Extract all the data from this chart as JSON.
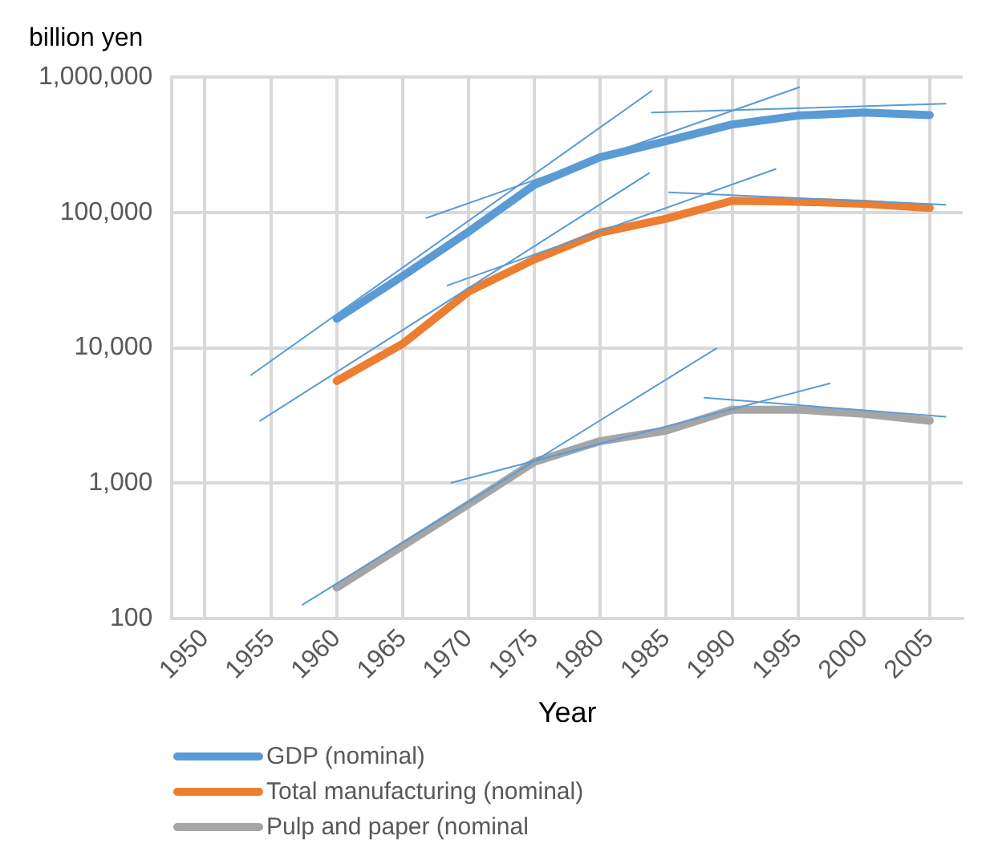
{
  "chart_data": {
    "type": "line",
    "xlabel": "Year",
    "ylabel": "billion yen",
    "log": "y",
    "grid": true,
    "legend": "bottom",
    "marker": "none",
    "line_style": "solid",
    "x": [
      1960,
      1965,
      1970,
      1975,
      1980,
      1985,
      1990,
      1995,
      2000,
      2005
    ],
    "xlim": [
      1947.5,
      2007.5
    ],
    "xticks": [
      1950,
      1955,
      1960,
      1965,
      1970,
      1975,
      1980,
      1985,
      1990,
      1995,
      2000,
      2005
    ],
    "ylim": [
      100,
      1000000
    ],
    "yticks": [
      {
        "value": 100,
        "label": "100"
      },
      {
        "value": 1000,
        "label": "1,000"
      },
      {
        "value": 10000,
        "label": "10,000"
      },
      {
        "value": 100000,
        "label": "100,000"
      },
      {
        "value": 1000000,
        "label": "1,000,000"
      }
    ],
    "series": [
      {
        "name": "GDP (nominal)",
        "color": "#5b9bd5",
        "values": [
          16400,
          33900,
          72000,
          160000,
          256000,
          336000,
          446000,
          519000,
          546000,
          524000
        ]
      },
      {
        "name": "Total manufacturing (nominal)",
        "color": "#ed7d31",
        "values": [
          5700,
          10700,
          26000,
          45000,
          71000,
          90000,
          122000,
          120000,
          116000,
          108000
        ]
      },
      {
        "name": "Pulp and paper (nominal",
        "color": "#a5a5a5",
        "values": [
          170,
          345,
          700,
          1440,
          2050,
          2450,
          3500,
          3500,
          3260,
          2900
        ]
      },
      {
        "type": "line",
        "color": "#5b9bd5",
        "x": [
          1953.5,
          1983.9
        ],
        "values": [
          6300,
          790000
        ]
      },
      {
        "type": "line",
        "color": "#5b9bd5",
        "x": [
          1966.8,
          1995.1
        ],
        "values": [
          91000,
          840000
        ]
      },
      {
        "type": "line",
        "color": "#5b9bd5",
        "x": [
          1983.9,
          2006.2
        ],
        "values": [
          546000,
          635000
        ]
      },
      {
        "type": "line",
        "color": "#5b9bd5",
        "x": [
          1954.2,
          1983.7
        ],
        "values": [
          2900,
          195000
        ]
      },
      {
        "type": "line",
        "color": "#5b9bd5",
        "x": [
          1968.4,
          1993.3
        ],
        "values": [
          28900,
          209000
        ]
      },
      {
        "type": "line",
        "color": "#5b9bd5",
        "x": [
          1985.2,
          2006.2
        ],
        "values": [
          141000,
          114000
        ]
      },
      {
        "type": "line",
        "color": "#5b9bd5",
        "x": [
          1957.4,
          1988.8
        ],
        "values": [
          127,
          9900
        ]
      },
      {
        "type": "line",
        "color": "#5b9bd5",
        "x": [
          1968.7,
          1997.4
        ],
        "values": [
          1010,
          5460
        ]
      },
      {
        "type": "line",
        "color": "#5b9bd5",
        "x": [
          1987.9,
          2006.2
        ],
        "values": [
          4290,
          3100
        ]
      }
    ]
  }
}
